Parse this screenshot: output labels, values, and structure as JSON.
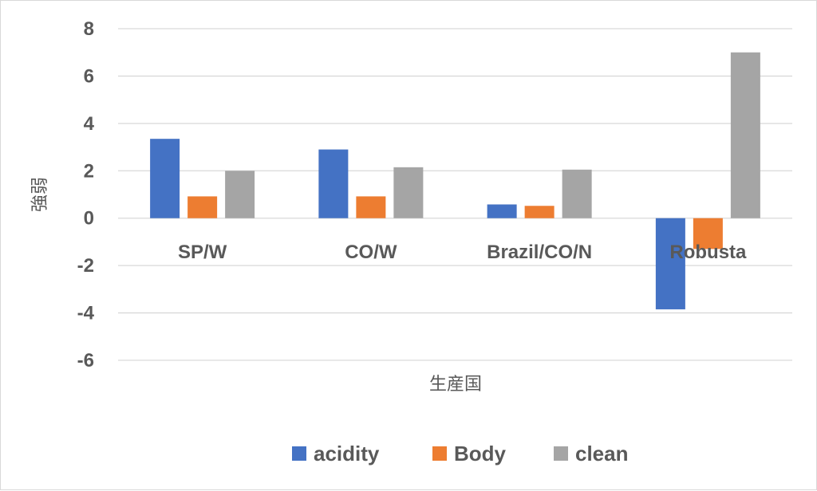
{
  "chart_data": {
    "type": "bar",
    "categories": [
      "SP/W",
      "CO/W",
      "Brazil/CO/N",
      "Robusta"
    ],
    "series": [
      {
        "name": "acidity",
        "color": "#4472c4",
        "values": [
          3.35,
          2.9,
          0.58,
          -3.85
        ]
      },
      {
        "name": "Body",
        "color": "#ed7d31",
        "values": [
          0.92,
          0.92,
          0.52,
          -1.3
        ]
      },
      {
        "name": "clean",
        "color": "#a5a5a5",
        "values": [
          2.0,
          2.15,
          2.05,
          7.0
        ]
      }
    ],
    "title": "",
    "xlabel": "生産国",
    "ylabel": "強弱",
    "ylim": [
      -6,
      8
    ],
    "yticks": [
      8,
      6,
      4,
      2,
      0,
      -2,
      -4,
      -6
    ],
    "ytick_labels": [
      "8",
      "6",
      "4",
      "2",
      "0",
      "-2",
      "-4",
      "-6"
    ],
    "grid": true,
    "legend_position": "bottom"
  }
}
